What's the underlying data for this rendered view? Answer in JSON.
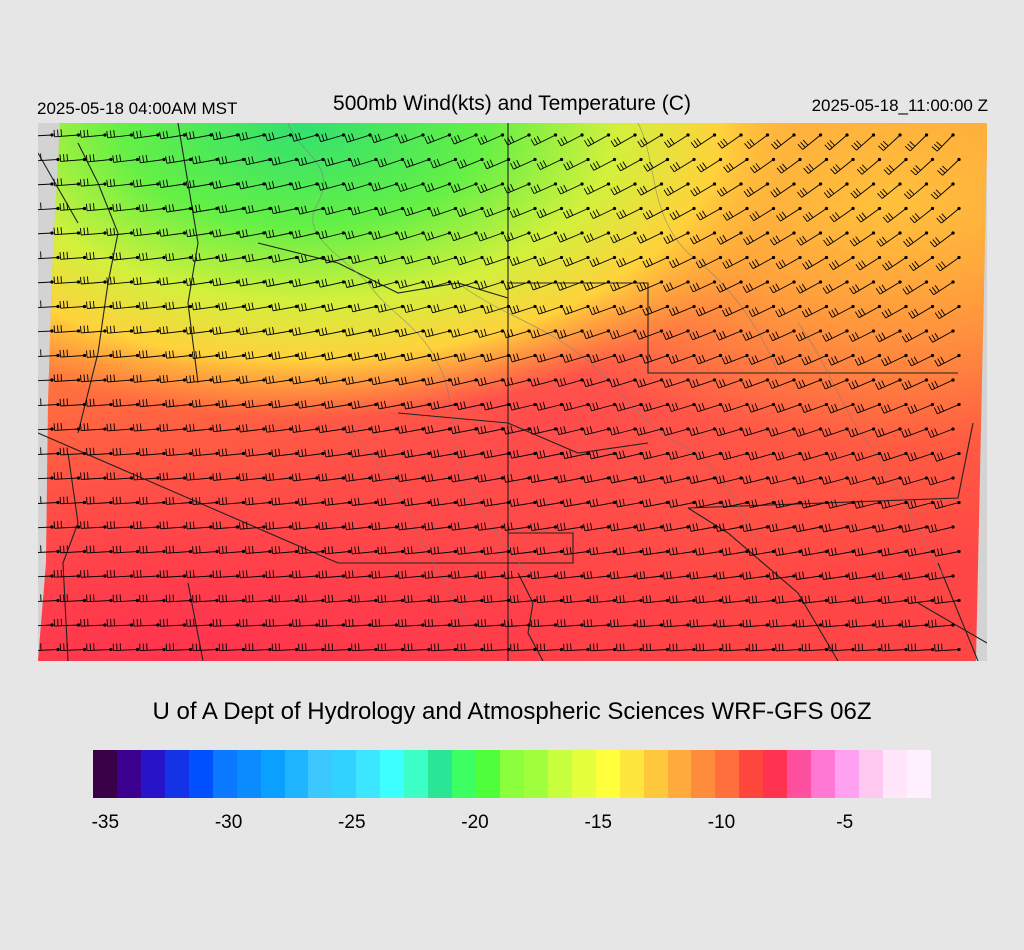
{
  "header": {
    "local_time": "2025-05-18 04:00AM MST",
    "title": "500mb Wind(kts) and Temperature (C)",
    "utc_time": "2025-05-18_11:00:00 Z"
  },
  "credit": "U of A Dept of Hydrology and Atmospheric Sciences WRF-GFS 06Z",
  "colorbar": {
    "colors": [
      "#3a0048",
      "#3c0090",
      "#2814c8",
      "#1432e6",
      "#0050ff",
      "#0a78ff",
      "#0a8cff",
      "#0aa0ff",
      "#1eb4ff",
      "#3cc8ff",
      "#32d2ff",
      "#3ce6ff",
      "#3cffff",
      "#3cffc8",
      "#28e696",
      "#3cff64",
      "#50ff3c",
      "#8cff3c",
      "#a0ff3c",
      "#c8ff3c",
      "#e6ff3c",
      "#ffff3c",
      "#ffe63c",
      "#ffc83c",
      "#ffaa3c",
      "#ff8c3c",
      "#ff6e3c",
      "#ff463c",
      "#ff3250",
      "#ff50a0",
      "#ff78d2",
      "#ffa0f0",
      "#ffc8f0",
      "#ffe6fa",
      "#fff0ff"
    ],
    "ticks": [
      {
        "label": "-35",
        "value": -35
      },
      {
        "label": "-30",
        "value": -30
      },
      {
        "label": "-25",
        "value": -25
      },
      {
        "label": "-20",
        "value": -20
      },
      {
        "label": "-15",
        "value": -15
      },
      {
        "label": "-10",
        "value": -10
      },
      {
        "label": "-5",
        "value": -5
      }
    ],
    "min": -35.5,
    "max": -1.5
  },
  "map": {
    "field": "temperature",
    "colors": {
      "cold": "#3cff64",
      "cool": "#ffff3c",
      "warm": "#ffaa3c",
      "warmer": "#ff6e3c",
      "hot": "#ff3250"
    }
  }
}
